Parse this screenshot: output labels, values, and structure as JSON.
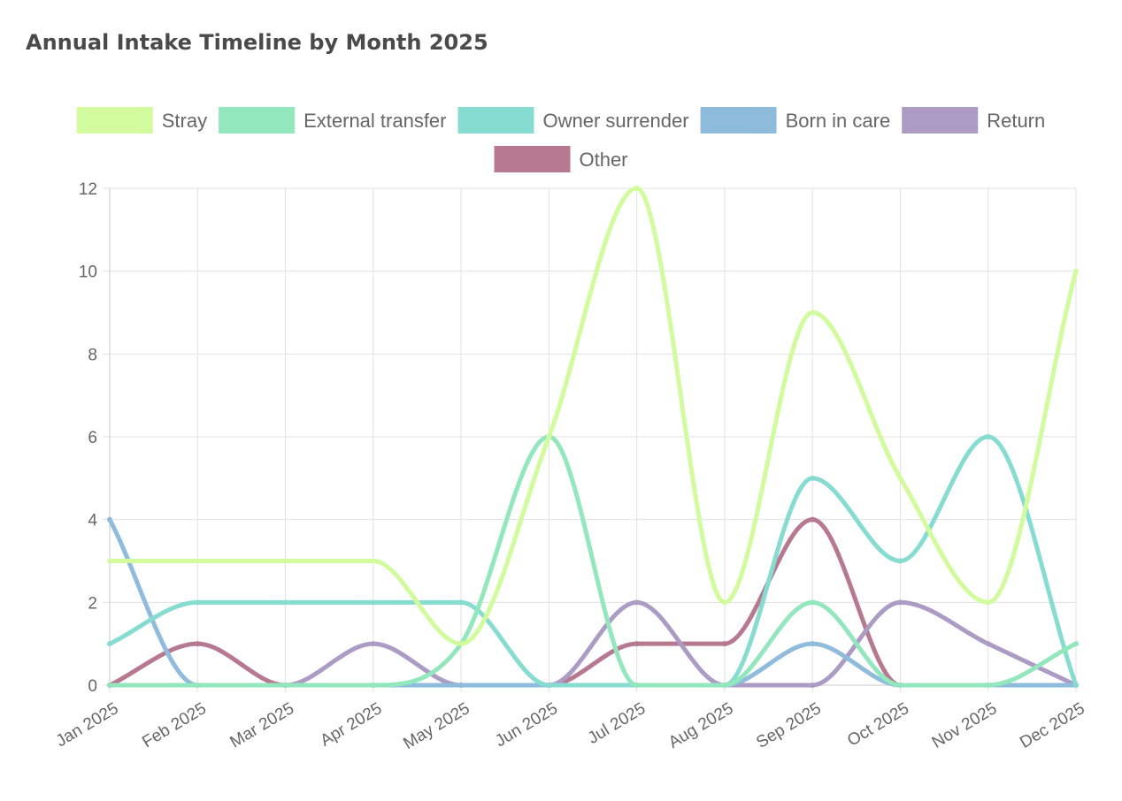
{
  "header": {
    "title": "Annual Intake Timeline by Month 2025"
  },
  "chart_data": {
    "type": "line",
    "title": "Annual Intake Timeline by Month 2025",
    "xlabel": "",
    "ylabel": "",
    "categories": [
      "Jan 2025",
      "Feb 2025",
      "Mar 2025",
      "Apr 2025",
      "May 2025",
      "Jun 2025",
      "Jul 2025",
      "Aug 2025",
      "Sep 2025",
      "Oct 2025",
      "Nov 2025",
      "Dec 2025"
    ],
    "ylim": [
      0,
      12
    ],
    "yticks": [
      "0",
      "2",
      "4",
      "6",
      "8",
      "10",
      "12"
    ],
    "grid": true,
    "legend_position": "top",
    "series": [
      {
        "name": "Stray",
        "color": "#d2fb9e",
        "values": [
          3,
          3,
          3,
          3,
          1,
          6,
          12,
          2,
          9,
          5,
          2,
          10
        ]
      },
      {
        "name": "External transfer",
        "color": "#92e7bd",
        "values": [
          0,
          0,
          0,
          0,
          1,
          6,
          0,
          0,
          2,
          0,
          0,
          1
        ]
      },
      {
        "name": "Owner surrender",
        "color": "#86dcd0",
        "values": [
          1,
          2,
          2,
          2,
          2,
          0,
          0,
          0,
          5,
          3,
          6,
          0
        ]
      },
      {
        "name": "Born in care",
        "color": "#8fbcdc",
        "values": [
          4,
          0,
          0,
          0,
          0,
          0,
          0,
          0,
          1,
          0,
          0,
          0
        ]
      },
      {
        "name": "Return",
        "color": "#ac9bc4",
        "values": [
          0,
          0,
          0,
          1,
          0,
          0,
          2,
          0,
          0,
          2,
          1,
          0
        ]
      },
      {
        "name": "Other",
        "color": "#b6798f",
        "values": [
          0,
          1,
          0,
          0,
          0,
          0,
          1,
          1,
          4,
          0,
          0,
          0
        ]
      }
    ]
  }
}
